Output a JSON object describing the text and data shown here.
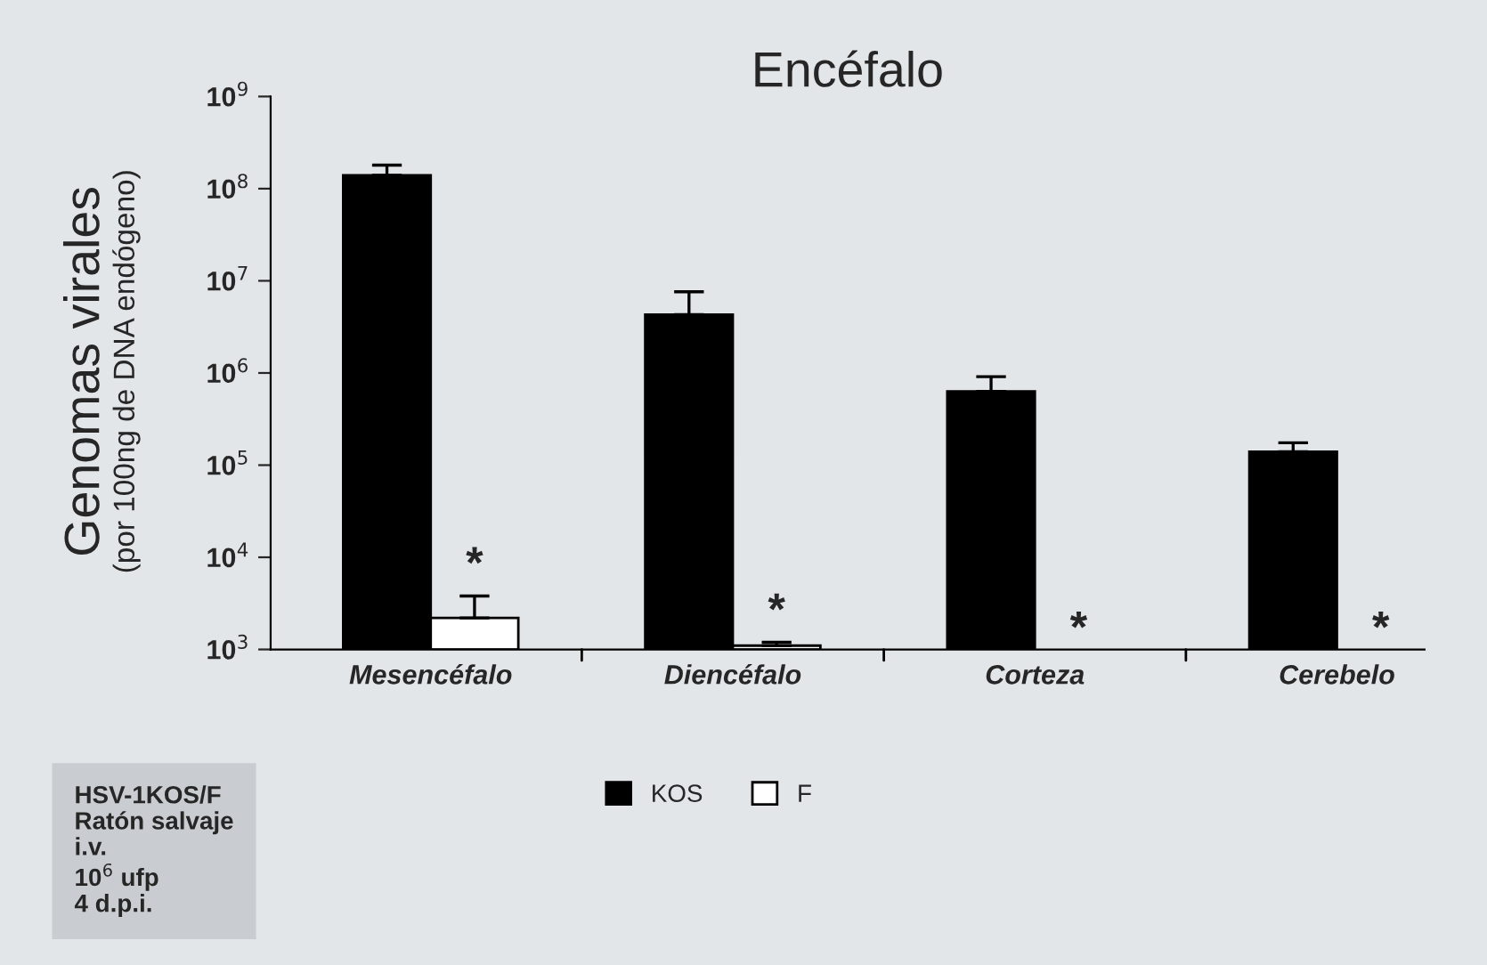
{
  "chart_data": {
    "type": "bar",
    "title": "Encéfalo",
    "ylabel": "Genomas virales\n(por 100ng de DNA endógeno)",
    "categories": [
      "Mesencéfalo",
      "Diencéfalo",
      "Corteza",
      "Cerebelo"
    ],
    "series": [
      {
        "name": "KOS",
        "color": "#000000",
        "values": [
          140000000,
          4300000,
          630000,
          140000
        ],
        "errors": [
          [
            140000000,
            180000000
          ],
          [
            4300000,
            7600000
          ],
          [
            630000,
            910000
          ],
          [
            140000,
            175000
          ]
        ]
      },
      {
        "name": "F",
        "color": "#ffffff",
        "values": [
          2200,
          1100,
          null,
          null
        ],
        "errors": [
          [
            2200,
            3800
          ],
          [
            1100,
            1200
          ],
          null,
          null
        ]
      }
    ],
    "log": true,
    "ylim": [
      1000,
      1000000000
    ],
    "yticks": [
      {
        "value": 1000,
        "label": "10$^{3}$"
      },
      {
        "value": 10000,
        "label": "10$^{4}$"
      },
      {
        "value": 100000,
        "label": "10$^{5}$"
      },
      {
        "value": 1000000,
        "label": "10$^{6}$"
      },
      {
        "value": 10000000,
        "label": "10$^{7}$"
      },
      {
        "value": 100000000,
        "label": "10$^{8}$"
      },
      {
        "value": 1000000000,
        "label": "10$^{9}$"
      }
    ],
    "grid": false,
    "legend": "bottom",
    "annotations": [
      {
        "text": "*",
        "x": "Mesencéfalo",
        "y": 8000
      },
      {
        "text": "*",
        "x": "Diencéfalo",
        "y": 2500
      },
      {
        "text": "*",
        "x": "Corteza",
        "y": 1600
      },
      {
        "text": "*",
        "x": "Cerebelo",
        "y": 1600
      },
      "HSV-1KOS/F\nRatón salvaje\ni.v.\n10$^{6}$ ufp\n4 d.p.i."
    ]
  }
}
